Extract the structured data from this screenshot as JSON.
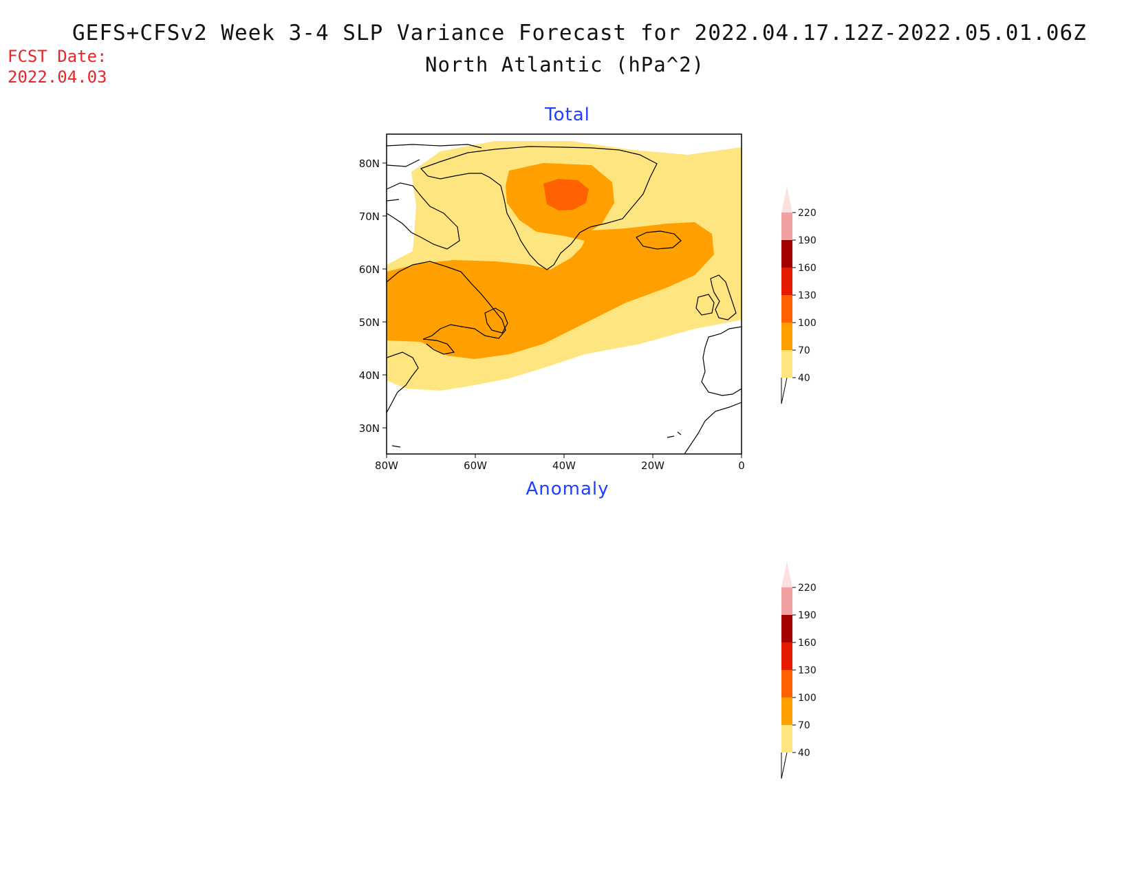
{
  "header": {
    "title_line1": "GEFS+CFSv2 Week 3-4 SLP Variance Forecast for 2022.04.17.12Z-2022.05.01.06Z",
    "title_line2": "North Atlantic (hPa^2)",
    "fcst_label": "FCST Date:",
    "fcst_date": "2022.04.03"
  },
  "panels": {
    "total_title": "Total",
    "anomaly_title": "Anomaly"
  },
  "map": {
    "region": "North Atlantic",
    "lon_range": [
      -80,
      0
    ],
    "lat_range": [
      25,
      85
    ],
    "lat_ticks": [
      "30N",
      "40N",
      "50N",
      "60N",
      "70N",
      "80N"
    ],
    "lon_ticks": [
      "80W",
      "60W",
      "40W",
      "20W",
      "0"
    ],
    "coastline_color": "#000000"
  },
  "colorbar": {
    "levels": [
      "40",
      "70",
      "100",
      "130",
      "160",
      "190",
      "220"
    ],
    "colors": [
      "#ffe57f",
      "#ff9f00",
      "#ff6100",
      "#e51b00",
      "#a50000",
      "#f0a0a0",
      "#fde1e1"
    ]
  }
}
